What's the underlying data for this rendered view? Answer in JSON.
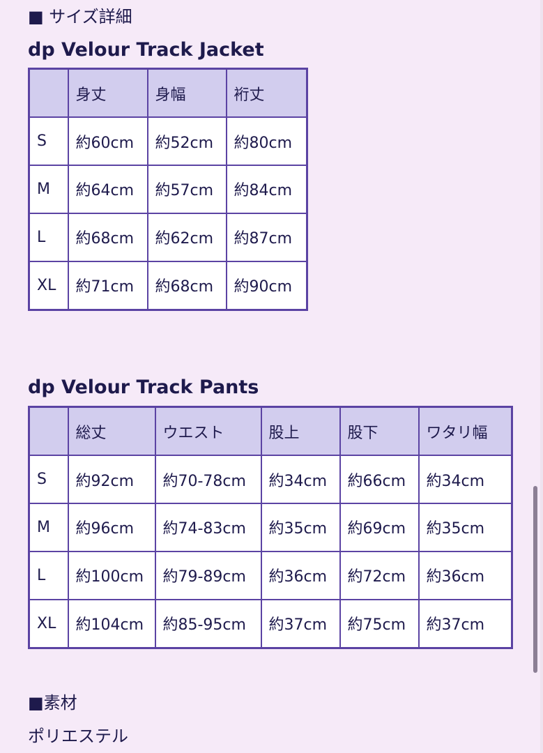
{
  "section_size": "■ サイズ詳細",
  "jacket": {
    "title": "dp Velour Track Jacket",
    "headers": [
      "",
      "身丈",
      "身幅",
      "裄丈"
    ],
    "rows": [
      [
        "S",
        "約60cm",
        "約52cm",
        "約80cm"
      ],
      [
        "M",
        "約64cm",
        "約57cm",
        "約84cm"
      ],
      [
        "L",
        "約68cm",
        "約62cm",
        "約87cm"
      ],
      [
        "XL",
        "約71cm",
        "約68cm",
        "約90cm"
      ]
    ]
  },
  "pants": {
    "title": "dp Velour Track Pants",
    "headers": [
      "",
      "総丈",
      "ウエスト",
      "股上",
      "股下",
      "ワタリ幅"
    ],
    "rows": [
      [
        "S",
        "約92cm",
        "約70-78cm",
        "約34cm",
        "約66cm",
        "約34cm"
      ],
      [
        "M",
        "約96cm",
        "約74-83cm",
        "約35cm",
        "約69cm",
        "約35cm"
      ],
      [
        "L",
        "約100cm",
        "約79-89cm",
        "約36cm",
        "約72cm",
        "約36cm"
      ],
      [
        "XL",
        "約104cm",
        "約85-95cm",
        "約37cm",
        "約75cm",
        "約37cm"
      ]
    ]
  },
  "section_material": "■素材",
  "material": "ポリエステル",
  "colors": {
    "border": "#5b43a3",
    "header_bg": "#d2cdee",
    "page_bg": "#f6eaf8",
    "text": "#1e1a4c"
  }
}
